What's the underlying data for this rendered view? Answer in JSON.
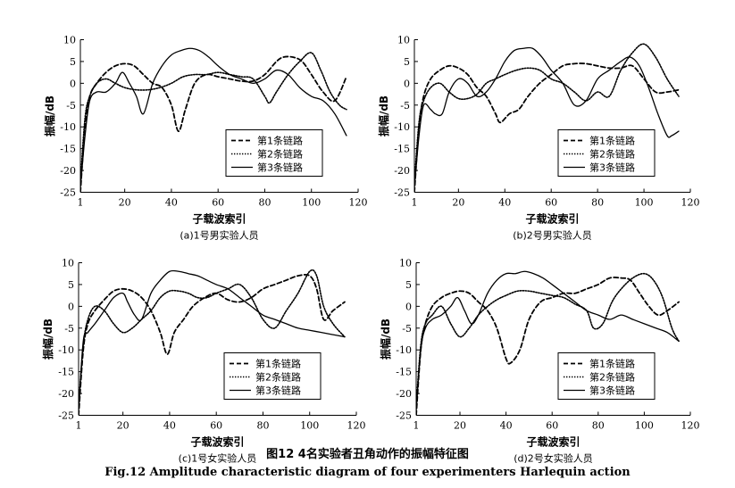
{
  "figure": {
    "caption_cn": "图12   4名实验者丑角动作的振幅特征图",
    "caption_en": "Fig.12    Amplitude characteristic diagram of four experimenters Harlequin action"
  },
  "chart_data": [
    {
      "type": "line",
      "subtitle": "(a)1号男实验人员",
      "xlabel": "子载波索引",
      "ylabel": "振幅/dB",
      "xlim": [
        1,
        120
      ],
      "ylim": [
        -25,
        10
      ],
      "xticks": [
        1,
        20,
        40,
        60,
        80,
        100,
        120
      ],
      "yticks": [
        10,
        5,
        0,
        -5,
        -10,
        -15,
        -20,
        -25
      ],
      "legend": "bottom-right",
      "series": [
        {
          "name": "第1条链路",
          "style": "dashed",
          "x": [
            1,
            3,
            5,
            8,
            12,
            16,
            20,
            24,
            28,
            32,
            36,
            40,
            43,
            46,
            50,
            55,
            60,
            65,
            70,
            75,
            80,
            85,
            88,
            92,
            96,
            100,
            105,
            110,
            115
          ],
          "y": [
            -25,
            -10,
            -3,
            0,
            2.5,
            4,
            4.5,
            4,
            2,
            0,
            -1,
            -5,
            -11,
            -6,
            0,
            2,
            1.5,
            1,
            0.5,
            0.5,
            2,
            5,
            6,
            6,
            5,
            2,
            -2,
            -4,
            1.5
          ]
        },
        {
          "name": "第2条链路",
          "style": "dotted",
          "x": [
            1,
            3,
            5,
            8,
            12,
            16,
            20,
            25,
            30,
            35,
            40,
            45,
            50,
            55,
            60,
            65,
            70,
            75,
            80,
            82,
            85,
            90,
            95,
            100,
            104,
            108,
            112,
            115
          ],
          "y": [
            -23,
            -8,
            -3,
            0,
            1,
            0,
            -1,
            -1.5,
            -1.5,
            -1,
            0,
            1.5,
            2,
            2,
            2.5,
            2,
            1.5,
            1,
            -3,
            -4.5,
            -2,
            2,
            5,
            7,
            3,
            -2,
            -5,
            -6
          ]
        },
        {
          "name": "第3条链路",
          "style": "solid",
          "x": [
            1,
            3,
            5,
            8,
            12,
            16,
            19,
            22,
            25,
            28,
            32,
            36,
            40,
            44,
            48,
            52,
            56,
            60,
            65,
            70,
            75,
            80,
            85,
            90,
            95,
            100,
            105,
            110,
            115
          ],
          "y": [
            -24,
            -12,
            -4,
            -2,
            -2,
            0,
            2.5,
            0,
            -3,
            -7,
            0,
            4,
            6.5,
            7.5,
            8,
            7.5,
            6,
            4,
            2,
            1,
            0,
            1,
            3,
            2,
            -1,
            -3,
            -4,
            -7,
            -12
          ]
        }
      ]
    },
    {
      "type": "line",
      "subtitle": "(b)2号男实验人员",
      "xlabel": "子载波索引",
      "ylabel": "振幅/dB",
      "xlim": [
        1,
        120
      ],
      "ylim": [
        -25,
        10
      ],
      "xticks": [
        1,
        20,
        40,
        60,
        80,
        100,
        120
      ],
      "yticks": [
        10,
        5,
        0,
        -5,
        -10,
        -15,
        -20,
        -25
      ],
      "legend": "bottom-right",
      "series": [
        {
          "name": "第1条链路",
          "style": "dashed",
          "x": [
            1,
            3,
            5,
            8,
            12,
            16,
            20,
            24,
            28,
            32,
            36,
            38,
            42,
            46,
            50,
            55,
            60,
            65,
            70,
            75,
            80,
            85,
            90,
            95,
            100,
            105,
            110,
            115
          ],
          "y": [
            -25,
            -10,
            -3,
            1,
            3,
            4,
            3.5,
            2,
            -1,
            -3,
            -7,
            -9,
            -7,
            -6,
            -3,
            0,
            2,
            4,
            4.5,
            4.5,
            4,
            3.5,
            3.5,
            4,
            1,
            -2,
            -2,
            -1.5
          ]
        },
        {
          "name": "第2条链路",
          "style": "dotted",
          "x": [
            1,
            3,
            5,
            8,
            12,
            16,
            20,
            24,
            28,
            32,
            36,
            40,
            45,
            50,
            55,
            60,
            65,
            70,
            75,
            80,
            85,
            90,
            95,
            100,
            105,
            110,
            115
          ],
          "y": [
            -23,
            -9,
            -4,
            -1,
            0,
            -2,
            -3.5,
            -3.5,
            -2.5,
            0,
            1,
            2,
            3,
            3.5,
            3,
            1,
            0,
            -2,
            -4,
            -2,
            -3,
            3,
            7,
            9,
            6,
            1,
            -3
          ]
        },
        {
          "name": "第3条链路",
          "style": "solid",
          "x": [
            1,
            3,
            5,
            8,
            10,
            13,
            16,
            20,
            24,
            28,
            32,
            36,
            40,
            44,
            48,
            52,
            56,
            60,
            65,
            70,
            75,
            80,
            85,
            90,
            94,
            98,
            102,
            106,
            110,
            112,
            115
          ],
          "y": [
            -24,
            -12,
            -5,
            -6,
            -7,
            -7,
            -2,
            1,
            0,
            -3,
            -2,
            1,
            5,
            7.5,
            8,
            8,
            6,
            3,
            0,
            -5,
            -4,
            1,
            3,
            5,
            6,
            4,
            -1,
            -7,
            -12,
            -12,
            -11
          ]
        }
      ]
    },
    {
      "type": "line",
      "subtitle": "(c)1号女实验人员",
      "xlabel": "子载波索引",
      "ylabel": "振幅/dB",
      "xlim": [
        1,
        120
      ],
      "ylim": [
        -25,
        10
      ],
      "xticks": [
        1,
        20,
        40,
        60,
        80,
        100,
        120
      ],
      "yticks": [
        10,
        5,
        0,
        -5,
        -10,
        -15,
        -20,
        -25
      ],
      "legend": "bottom-right",
      "series": [
        {
          "name": "第1条链路",
          "style": "dashed",
          "x": [
            1,
            3,
            5,
            8,
            12,
            16,
            20,
            24,
            28,
            32,
            36,
            39,
            42,
            46,
            50,
            55,
            60,
            65,
            70,
            75,
            80,
            85,
            90,
            95,
            100,
            103,
            106,
            110,
            115
          ],
          "y": [
            -25,
            -10,
            -4,
            -1,
            1.5,
            3.5,
            4,
            3.5,
            2,
            -1,
            -6,
            -11,
            -6,
            -3,
            0,
            2,
            3,
            1.5,
            1,
            2,
            4,
            5,
            6,
            7,
            7,
            4,
            -3,
            -1,
            1
          ]
        },
        {
          "name": "第2条链路",
          "style": "dotted",
          "x": [
            1,
            3,
            5,
            8,
            12,
            16,
            20,
            24,
            28,
            32,
            36,
            40,
            44,
            48,
            52,
            56,
            60,
            65,
            70,
            75,
            80,
            85,
            90,
            95,
            100,
            103,
            106,
            110,
            115
          ],
          "y": [
            -23,
            -9,
            -3,
            0,
            -1,
            -4,
            -6,
            -5,
            -3,
            -1,
            2,
            3.5,
            3.5,
            3,
            2,
            2,
            3,
            4,
            5,
            2,
            -3,
            -5,
            -1,
            3,
            8,
            7,
            0,
            -4,
            -7
          ]
        },
        {
          "name": "第3条链路",
          "style": "solid",
          "x": [
            1,
            3,
            5,
            8,
            12,
            16,
            20,
            22,
            25,
            28,
            32,
            36,
            40,
            44,
            48,
            52,
            56,
            60,
            65,
            70,
            75,
            80,
            85,
            90,
            95,
            100,
            105,
            110,
            115
          ],
          "y": [
            -24,
            -8,
            -6,
            -4,
            -1,
            2,
            3,
            1,
            -2,
            -3,
            3,
            6,
            8,
            8,
            7.5,
            7,
            6,
            5,
            4,
            2,
            0,
            -2,
            -3,
            -4,
            -5,
            -5.5,
            -6,
            -6.5,
            -7
          ]
        }
      ]
    },
    {
      "type": "line",
      "subtitle": "(d)2号女实验人员",
      "xlabel": "子载波索引",
      "ylabel": "振幅/dB",
      "xlim": [
        1,
        120
      ],
      "ylim": [
        -25,
        10
      ],
      "xticks": [
        1,
        20,
        40,
        60,
        80,
        100,
        120
      ],
      "yticks": [
        10,
        5,
        0,
        -5,
        -10,
        -15,
        -20,
        -25
      ],
      "legend": "bottom-right",
      "series": [
        {
          "name": "第1条链路",
          "style": "dashed",
          "x": [
            1,
            3,
            5,
            8,
            12,
            16,
            20,
            24,
            28,
            32,
            36,
            40,
            42,
            46,
            50,
            55,
            60,
            65,
            70,
            75,
            80,
            85,
            90,
            94,
            98,
            102,
            106,
            110,
            115
          ],
          "y": [
            -25,
            -10,
            -4,
            0,
            2,
            3,
            3.5,
            3,
            1,
            -1,
            -5,
            -12,
            -13,
            -10,
            -3,
            1,
            2,
            3,
            3,
            4,
            5,
            6.5,
            6.5,
            6,
            3,
            0,
            -2,
            -1,
            1
          ]
        },
        {
          "name": "第2条链路",
          "style": "dotted",
          "x": [
            1,
            3,
            5,
            8,
            12,
            16,
            20,
            24,
            28,
            32,
            36,
            40,
            45,
            50,
            55,
            60,
            65,
            70,
            75,
            78,
            82,
            86,
            90,
            95,
            100,
            104,
            108,
            112,
            115
          ],
          "y": [
            -23,
            -9,
            -4,
            -2,
            0,
            -4,
            -7,
            -5,
            -2,
            0,
            1.5,
            2.5,
            3.5,
            3.5,
            3,
            2.5,
            2,
            0.5,
            -1,
            -5,
            -4,
            1,
            4,
            6.5,
            7.5,
            6,
            2,
            -5,
            -8
          ]
        },
        {
          "name": "第3条链路",
          "style": "solid",
          "x": [
            1,
            3,
            5,
            8,
            12,
            16,
            19,
            22,
            25,
            28,
            32,
            36,
            40,
            44,
            48,
            52,
            56,
            60,
            65,
            70,
            75,
            80,
            85,
            90,
            95,
            100,
            105,
            110,
            115
          ],
          "y": [
            -24,
            -10,
            -5,
            -3,
            -2,
            0,
            2,
            -1,
            -4,
            -2,
            3,
            6,
            7.5,
            7.5,
            8,
            7.5,
            6.5,
            5,
            3,
            1,
            -1,
            -2,
            -3,
            -2,
            -3,
            -4,
            -5,
            -6,
            -8
          ]
        }
      ]
    }
  ]
}
